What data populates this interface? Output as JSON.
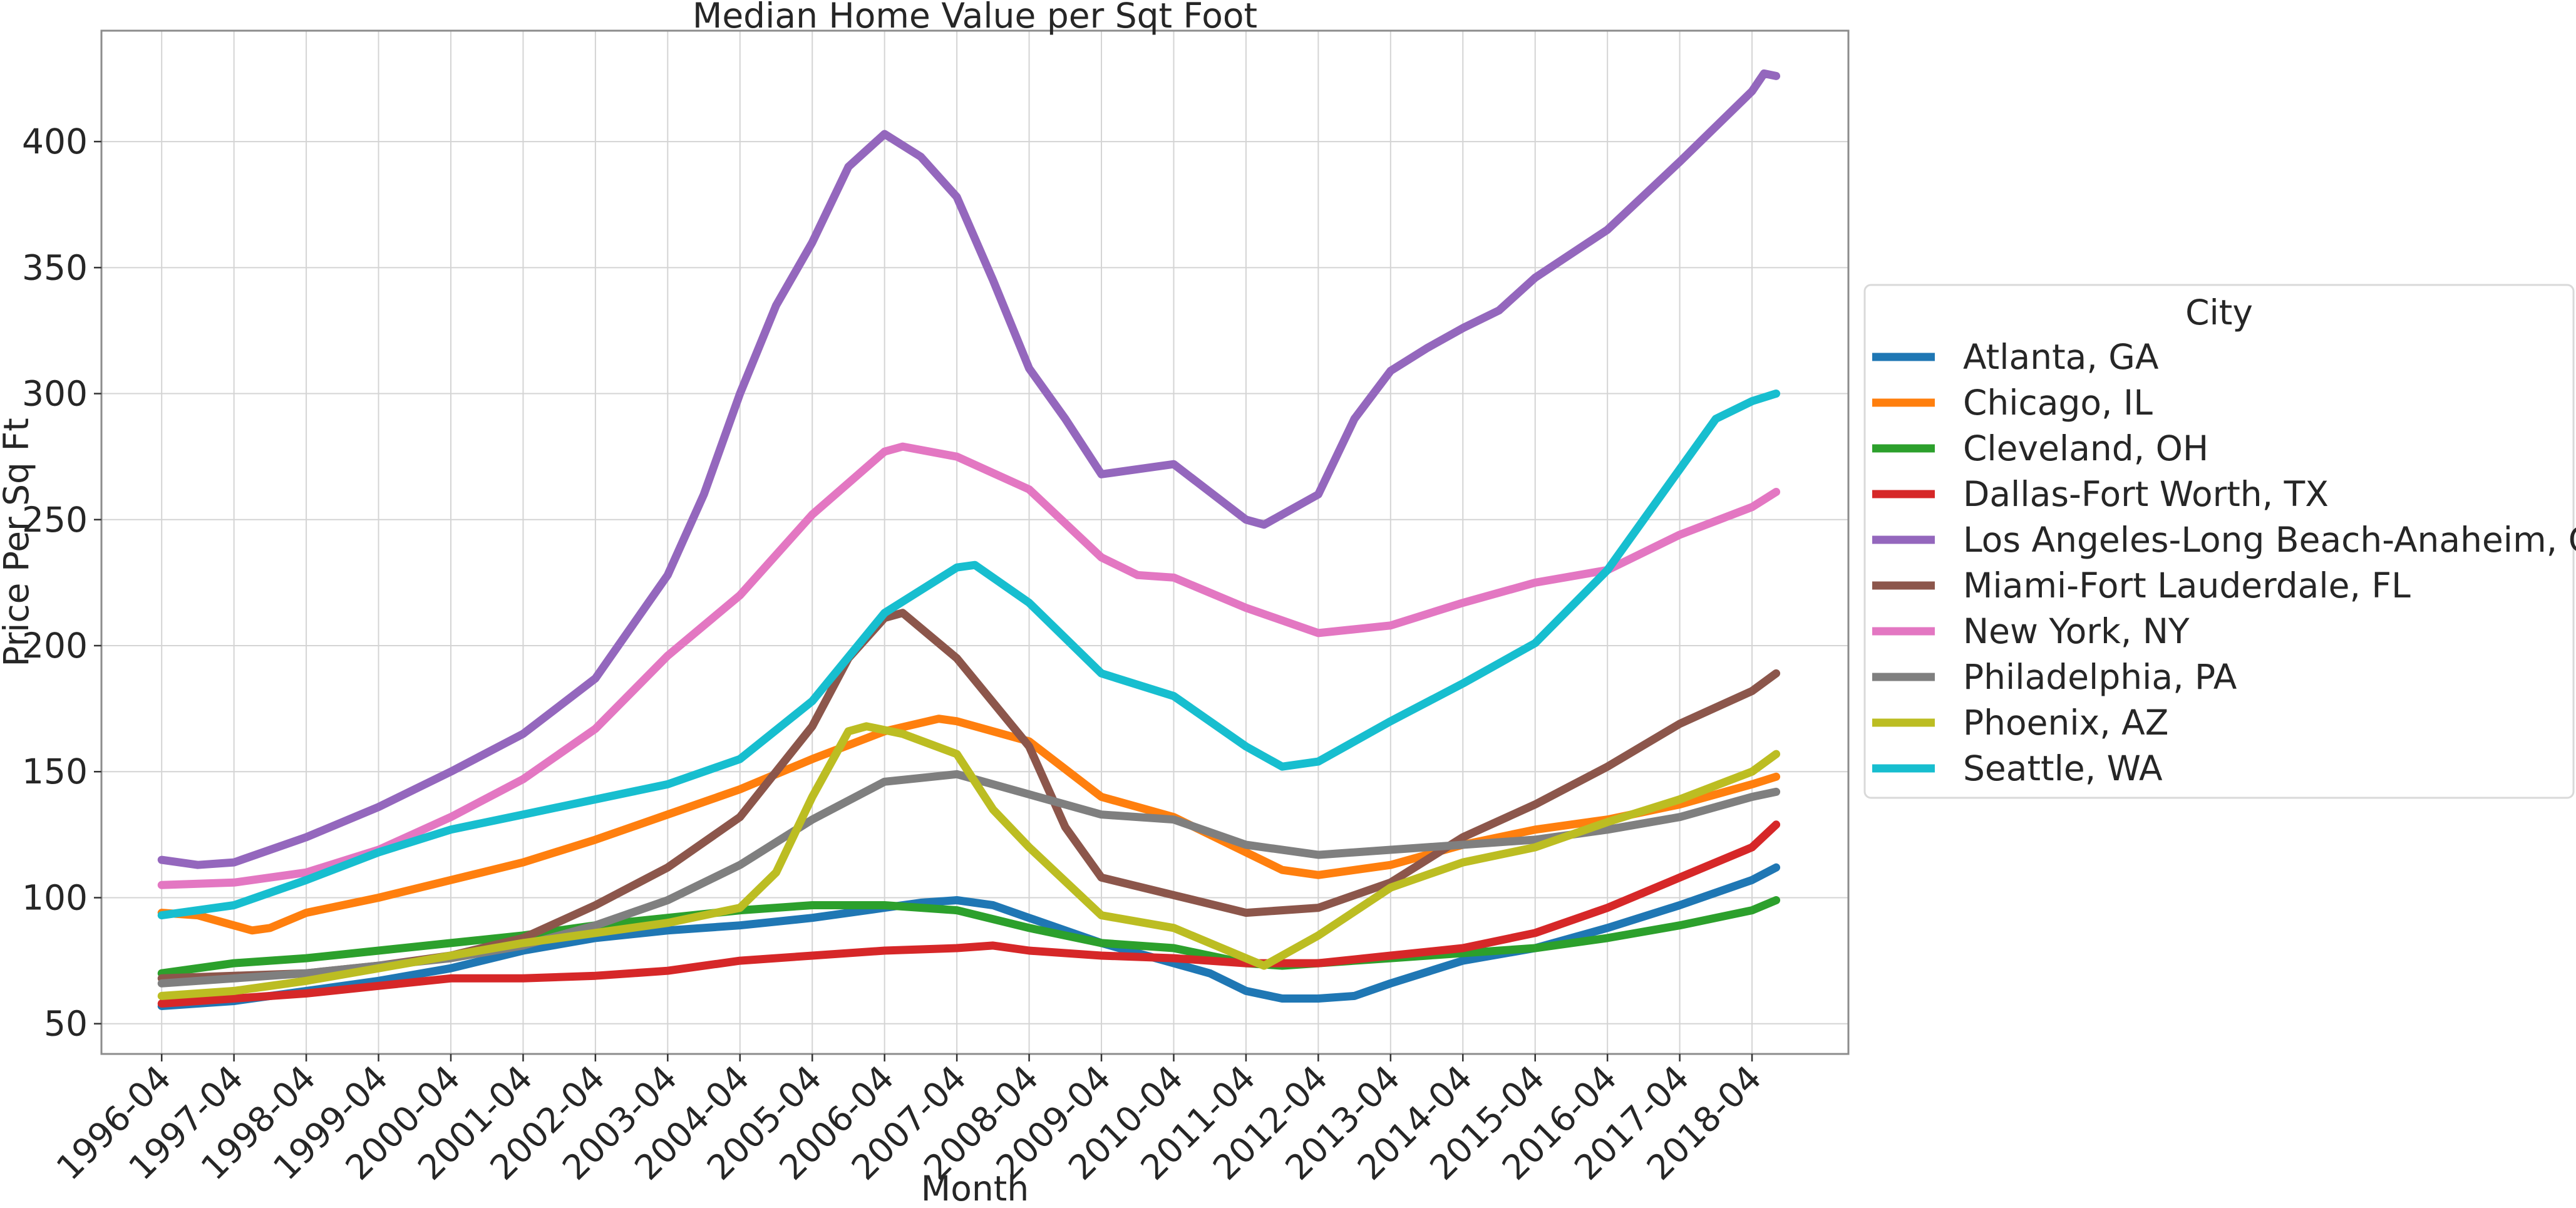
{
  "chart_data": {
    "type": "line",
    "title": "Median Home Value per Sqt Foot",
    "xlabel": "Month",
    "ylabel": "Price Per Sq Ft",
    "x_tick_labels": [
      "1996-04",
      "1997-04",
      "1998-04",
      "1999-04",
      "2000-04",
      "2001-04",
      "2002-04",
      "2003-04",
      "2004-04",
      "2005-04",
      "2006-04",
      "2007-04",
      "2008-04",
      "2009-04",
      "2010-04",
      "2011-04",
      "2012-04",
      "2013-04",
      "2014-04",
      "2015-04",
      "2016-04",
      "2017-04",
      "2018-04"
    ],
    "y_ticks": [
      50,
      100,
      150,
      200,
      250,
      300,
      350,
      400
    ],
    "x_range": [
      "1996-04",
      "2018-08"
    ],
    "ylim": [
      38,
      444
    ],
    "grid": true,
    "legend_title": "City",
    "legend_position": "outside right",
    "series": [
      {
        "name": "Atlanta, GA",
        "color": "#1f77b4",
        "points": [
          [
            "1996-04",
            57
          ],
          [
            "1997-04",
            59
          ],
          [
            "1998-04",
            63
          ],
          [
            "1999-04",
            67
          ],
          [
            "2000-04",
            72
          ],
          [
            "2001-04",
            79
          ],
          [
            "2002-04",
            84
          ],
          [
            "2003-04",
            87
          ],
          [
            "2004-04",
            89
          ],
          [
            "2005-04",
            92
          ],
          [
            "2006-04",
            96
          ],
          [
            "2006-10",
            98
          ],
          [
            "2007-04",
            99
          ],
          [
            "2007-10",
            97
          ],
          [
            "2008-04",
            92
          ],
          [
            "2009-04",
            82
          ],
          [
            "2010-04",
            74
          ],
          [
            "2010-10",
            70
          ],
          [
            "2011-04",
            63
          ],
          [
            "2011-10",
            60
          ],
          [
            "2012-04",
            60
          ],
          [
            "2012-10",
            61
          ],
          [
            "2013-04",
            66
          ],
          [
            "2014-04",
            75
          ],
          [
            "2015-04",
            80
          ],
          [
            "2016-04",
            88
          ],
          [
            "2017-04",
            97
          ],
          [
            "2018-04",
            107
          ],
          [
            "2018-08",
            112
          ]
        ]
      },
      {
        "name": "Chicago, IL",
        "color": "#ff7f0e",
        "points": [
          [
            "1996-04",
            94
          ],
          [
            "1996-10",
            93
          ],
          [
            "1997-04",
            89
          ],
          [
            "1997-07",
            87
          ],
          [
            "1997-10",
            88
          ],
          [
            "1998-04",
            94
          ],
          [
            "1999-04",
            100
          ],
          [
            "2000-04",
            107
          ],
          [
            "2001-04",
            114
          ],
          [
            "2002-04",
            123
          ],
          [
            "2003-04",
            133
          ],
          [
            "2004-04",
            143
          ],
          [
            "2005-04",
            155
          ],
          [
            "2006-04",
            166
          ],
          [
            "2007-01",
            171
          ],
          [
            "2007-04",
            170
          ],
          [
            "2008-04",
            162
          ],
          [
            "2009-04",
            140
          ],
          [
            "2010-04",
            132
          ],
          [
            "2011-04",
            118
          ],
          [
            "2011-10",
            111
          ],
          [
            "2012-04",
            109
          ],
          [
            "2013-04",
            113
          ],
          [
            "2014-04",
            121
          ],
          [
            "2015-04",
            127
          ],
          [
            "2016-04",
            131
          ],
          [
            "2017-04",
            137
          ],
          [
            "2018-04",
            145
          ],
          [
            "2018-08",
            148
          ]
        ]
      },
      {
        "name": "Cleveland, OH",
        "color": "#2ca02c",
        "points": [
          [
            "1996-04",
            70
          ],
          [
            "1997-04",
            74
          ],
          [
            "1998-04",
            76
          ],
          [
            "1999-04",
            79
          ],
          [
            "2000-04",
            82
          ],
          [
            "2001-04",
            85
          ],
          [
            "2002-04",
            89
          ],
          [
            "2003-04",
            92
          ],
          [
            "2004-04",
            95
          ],
          [
            "2005-04",
            97
          ],
          [
            "2006-04",
            97
          ],
          [
            "2007-04",
            95
          ],
          [
            "2008-04",
            88
          ],
          [
            "2009-04",
            82
          ],
          [
            "2010-04",
            80
          ],
          [
            "2011-04",
            74
          ],
          [
            "2011-10",
            73
          ],
          [
            "2012-04",
            74
          ],
          [
            "2013-04",
            76
          ],
          [
            "2014-04",
            78
          ],
          [
            "2015-04",
            80
          ],
          [
            "2016-04",
            84
          ],
          [
            "2017-04",
            89
          ],
          [
            "2018-04",
            95
          ],
          [
            "2018-08",
            99
          ]
        ]
      },
      {
        "name": "Dallas-Fort Worth, TX",
        "color": "#d62728",
        "points": [
          [
            "1996-04",
            58
          ],
          [
            "1997-04",
            60
          ],
          [
            "1998-04",
            62
          ],
          [
            "1999-04",
            65
          ],
          [
            "2000-04",
            68
          ],
          [
            "2001-04",
            68
          ],
          [
            "2002-04",
            69
          ],
          [
            "2003-04",
            71
          ],
          [
            "2004-04",
            75
          ],
          [
            "2005-04",
            77
          ],
          [
            "2006-04",
            79
          ],
          [
            "2007-04",
            80
          ],
          [
            "2007-10",
            81
          ],
          [
            "2008-04",
            79
          ],
          [
            "2009-04",
            77
          ],
          [
            "2010-04",
            76
          ],
          [
            "2011-04",
            74
          ],
          [
            "2012-04",
            74
          ],
          [
            "2013-04",
            77
          ],
          [
            "2014-04",
            80
          ],
          [
            "2015-04",
            86
          ],
          [
            "2016-04",
            96
          ],
          [
            "2017-04",
            108
          ],
          [
            "2018-04",
            120
          ],
          [
            "2018-08",
            129
          ]
        ]
      },
      {
        "name": "Los Angeles-Long Beach-Anaheim, CA",
        "color": "#9467bd",
        "points": [
          [
            "1996-04",
            115
          ],
          [
            "1996-10",
            113
          ],
          [
            "1997-04",
            114
          ],
          [
            "1998-04",
            124
          ],
          [
            "1999-04",
            136
          ],
          [
            "2000-04",
            150
          ],
          [
            "2001-04",
            165
          ],
          [
            "2002-04",
            187
          ],
          [
            "2003-04",
            228
          ],
          [
            "2003-10",
            260
          ],
          [
            "2004-04",
            300
          ],
          [
            "2004-10",
            335
          ],
          [
            "2005-04",
            360
          ],
          [
            "2005-10",
            390
          ],
          [
            "2006-04",
            403
          ],
          [
            "2006-10",
            394
          ],
          [
            "2007-04",
            378
          ],
          [
            "2007-10",
            345
          ],
          [
            "2008-04",
            310
          ],
          [
            "2008-10",
            290
          ],
          [
            "2009-04",
            268
          ],
          [
            "2010-04",
            272
          ],
          [
            "2010-10",
            261
          ],
          [
            "2011-04",
            250
          ],
          [
            "2011-07",
            248
          ],
          [
            "2012-04",
            260
          ],
          [
            "2012-10",
            290
          ],
          [
            "2013-04",
            309
          ],
          [
            "2013-10",
            318
          ],
          [
            "2014-04",
            326
          ],
          [
            "2014-10",
            333
          ],
          [
            "2015-04",
            346
          ],
          [
            "2016-04",
            365
          ],
          [
            "2017-04",
            392
          ],
          [
            "2018-04",
            420
          ],
          [
            "2018-06",
            427
          ],
          [
            "2018-08",
            426
          ]
        ]
      },
      {
        "name": "Miami-Fort Lauderdale, FL",
        "color": "#8c564b",
        "points": [
          [
            "1996-04",
            68
          ],
          [
            "1997-04",
            69
          ],
          [
            "1998-04",
            70
          ],
          [
            "1999-04",
            73
          ],
          [
            "2000-04",
            77
          ],
          [
            "2001-04",
            84
          ],
          [
            "2002-04",
            97
          ],
          [
            "2003-04",
            112
          ],
          [
            "2004-04",
            132
          ],
          [
            "2005-04",
            168
          ],
          [
            "2005-10",
            195
          ],
          [
            "2006-04",
            211
          ],
          [
            "2006-07",
            213
          ],
          [
            "2007-04",
            195
          ],
          [
            "2008-04",
            160
          ],
          [
            "2008-10",
            128
          ],
          [
            "2009-04",
            108
          ],
          [
            "2010-04",
            101
          ],
          [
            "2011-04",
            94
          ],
          [
            "2012-04",
            96
          ],
          [
            "2013-04",
            106
          ],
          [
            "2014-04",
            124
          ],
          [
            "2015-04",
            137
          ],
          [
            "2016-04",
            152
          ],
          [
            "2017-04",
            169
          ],
          [
            "2018-04",
            182
          ],
          [
            "2018-08",
            189
          ]
        ]
      },
      {
        "name": "New York, NY",
        "color": "#e377c2",
        "points": [
          [
            "1996-04",
            105
          ],
          [
            "1997-04",
            106
          ],
          [
            "1998-04",
            110
          ],
          [
            "1999-04",
            119
          ],
          [
            "2000-04",
            132
          ],
          [
            "2001-04",
            147
          ],
          [
            "2002-04",
            167
          ],
          [
            "2003-04",
            196
          ],
          [
            "2004-04",
            220
          ],
          [
            "2005-04",
            252
          ],
          [
            "2006-04",
            277
          ],
          [
            "2006-07",
            279
          ],
          [
            "2007-04",
            275
          ],
          [
            "2008-04",
            262
          ],
          [
            "2009-04",
            235
          ],
          [
            "2009-10",
            228
          ],
          [
            "2010-04",
            227
          ],
          [
            "2011-04",
            215
          ],
          [
            "2012-04",
            205
          ],
          [
            "2013-04",
            208
          ],
          [
            "2014-04",
            217
          ],
          [
            "2015-04",
            225
          ],
          [
            "2016-04",
            230
          ],
          [
            "2017-04",
            244
          ],
          [
            "2018-04",
            255
          ],
          [
            "2018-08",
            261
          ]
        ]
      },
      {
        "name": "Philadelphia, PA",
        "color": "#7f7f7f",
        "points": [
          [
            "1996-04",
            66
          ],
          [
            "1997-04",
            68
          ],
          [
            "1998-04",
            70
          ],
          [
            "1999-04",
            73
          ],
          [
            "2000-04",
            76
          ],
          [
            "2001-04",
            81
          ],
          [
            "2002-04",
            89
          ],
          [
            "2003-04",
            99
          ],
          [
            "2004-04",
            113
          ],
          [
            "2005-04",
            131
          ],
          [
            "2006-04",
            146
          ],
          [
            "2007-04",
            149
          ],
          [
            "2008-04",
            141
          ],
          [
            "2009-04",
            133
          ],
          [
            "2010-04",
            131
          ],
          [
            "2011-04",
            121
          ],
          [
            "2012-04",
            117
          ],
          [
            "2013-04",
            119
          ],
          [
            "2014-04",
            121
          ],
          [
            "2015-04",
            123
          ],
          [
            "2016-04",
            127
          ],
          [
            "2017-04",
            132
          ],
          [
            "2018-04",
            140
          ],
          [
            "2018-08",
            142
          ]
        ]
      },
      {
        "name": "Phoenix, AZ",
        "color": "#bcbd22",
        "points": [
          [
            "1996-04",
            61
          ],
          [
            "1997-04",
            63
          ],
          [
            "1998-04",
            67
          ],
          [
            "1999-04",
            72
          ],
          [
            "2000-04",
            77
          ],
          [
            "2001-04",
            82
          ],
          [
            "2002-04",
            86
          ],
          [
            "2003-04",
            90
          ],
          [
            "2004-04",
            96
          ],
          [
            "2004-10",
            110
          ],
          [
            "2005-04",
            140
          ],
          [
            "2005-10",
            166
          ],
          [
            "2006-01",
            168
          ],
          [
            "2006-07",
            165
          ],
          [
            "2007-04",
            157
          ],
          [
            "2007-10",
            135
          ],
          [
            "2008-04",
            120
          ],
          [
            "2009-04",
            93
          ],
          [
            "2010-04",
            88
          ],
          [
            "2011-04",
            76
          ],
          [
            "2011-07",
            73
          ],
          [
            "2012-04",
            85
          ],
          [
            "2013-04",
            104
          ],
          [
            "2014-04",
            114
          ],
          [
            "2015-04",
            120
          ],
          [
            "2016-04",
            130
          ],
          [
            "2017-04",
            139
          ],
          [
            "2018-04",
            150
          ],
          [
            "2018-08",
            157
          ]
        ]
      },
      {
        "name": "Seattle, WA",
        "color": "#17becf",
        "points": [
          [
            "1996-04",
            93
          ],
          [
            "1997-04",
            97
          ],
          [
            "1998-04",
            107
          ],
          [
            "1999-04",
            118
          ],
          [
            "2000-04",
            127
          ],
          [
            "2001-04",
            133
          ],
          [
            "2002-04",
            139
          ],
          [
            "2003-04",
            145
          ],
          [
            "2004-04",
            155
          ],
          [
            "2005-04",
            178
          ],
          [
            "2006-04",
            213
          ],
          [
            "2007-04",
            231
          ],
          [
            "2007-07",
            232
          ],
          [
            "2008-04",
            217
          ],
          [
            "2009-04",
            189
          ],
          [
            "2010-04",
            180
          ],
          [
            "2011-04",
            160
          ],
          [
            "2011-10",
            152
          ],
          [
            "2012-04",
            154
          ],
          [
            "2013-04",
            170
          ],
          [
            "2014-04",
            185
          ],
          [
            "2015-04",
            201
          ],
          [
            "2016-04",
            230
          ],
          [
            "2017-04",
            270
          ],
          [
            "2017-10",
            290
          ],
          [
            "2018-04",
            297
          ],
          [
            "2018-08",
            300
          ]
        ]
      }
    ]
  }
}
